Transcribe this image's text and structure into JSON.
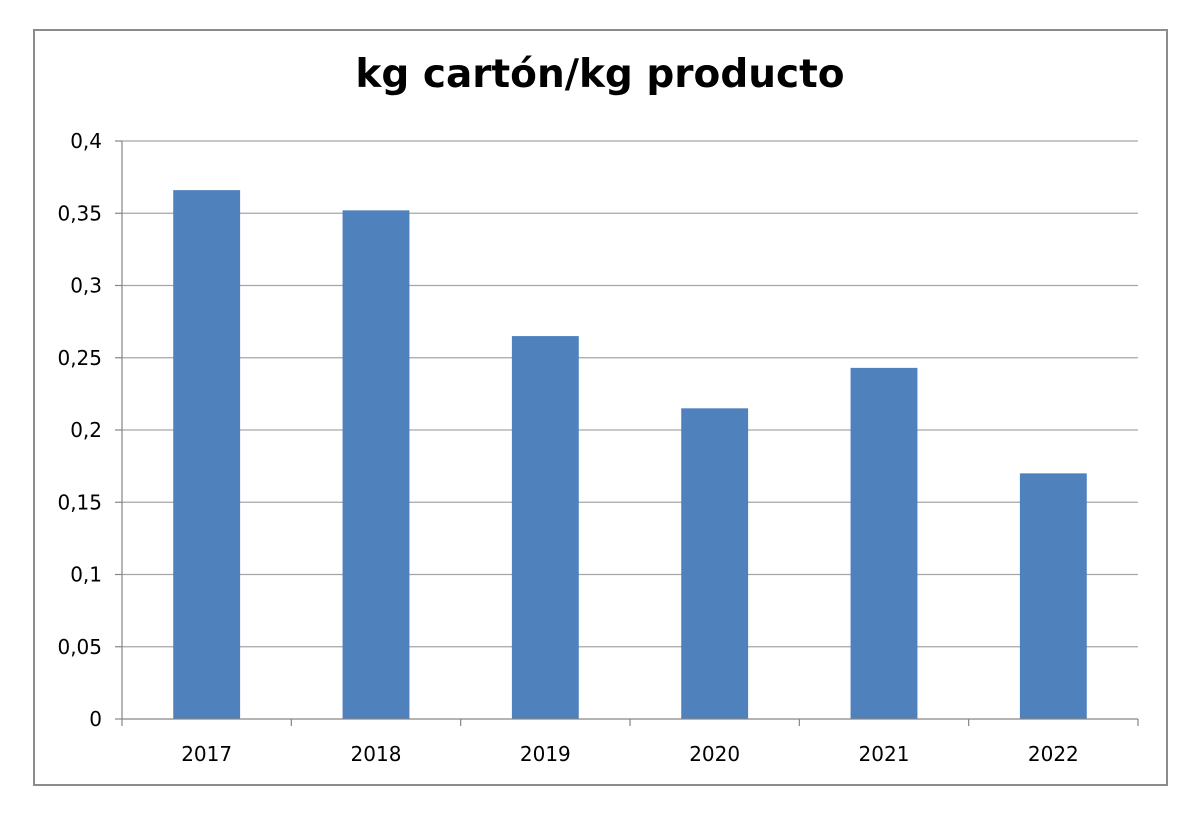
{
  "chart_data": {
    "type": "bar",
    "title": "kg cartón/kg producto",
    "xlabel": "",
    "ylabel": "",
    "categories": [
      "2017",
      "2018",
      "2019",
      "2020",
      "2021",
      "2022"
    ],
    "values": [
      0.366,
      0.352,
      0.265,
      0.215,
      0.243,
      0.17
    ],
    "ylim": [
      0,
      0.4
    ],
    "yticks": [
      0,
      0.05,
      0.1,
      0.15,
      0.2,
      0.25,
      0.3,
      0.35,
      0.4
    ],
    "ytick_labels": [
      "0",
      "0,05",
      "0,1",
      "0,15",
      "0,2",
      "0,25",
      "0,3",
      "0,35",
      "0,4"
    ],
    "grid": true,
    "legend": "none",
    "bar_color": "#4f81bd",
    "gridline_color": "#a6a6a6",
    "axis_color": "#868686"
  }
}
